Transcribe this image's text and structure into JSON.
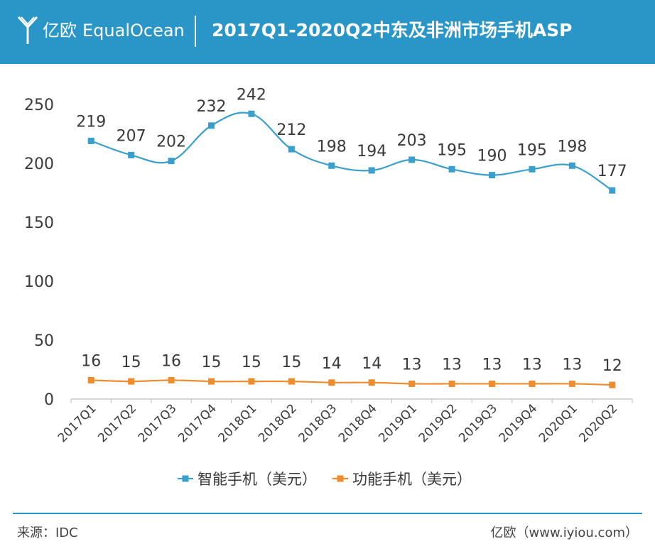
{
  "header": {
    "brand_cn": "亿欧",
    "brand_en": "EqualOcean",
    "title": "2017Q1-2020Q2中东及非洲市场手机ASP"
  },
  "colors": {
    "header_bg": "#2a96c8",
    "smartphone": "#3a9fcb",
    "featurephone": "#ee8c2e"
  },
  "chart_data": {
    "type": "line",
    "title": "2017Q1-2020Q2中东及非洲市场手机ASP",
    "categories": [
      "2017Q1",
      "2017Q2",
      "2017Q3",
      "2017Q4",
      "2018Q1",
      "2018Q2",
      "2018Q3",
      "2018Q4",
      "2019Q1",
      "2019Q2",
      "2019Q3",
      "2019Q4",
      "2020Q1",
      "2020Q2"
    ],
    "ylim": [
      0,
      250
    ],
    "yticks": [
      0,
      50,
      100,
      150,
      200,
      250
    ],
    "grid": false,
    "legend": "bottom",
    "series": [
      {
        "name": "智能手机（美元）",
        "values": [
          219,
          207,
          202,
          232,
          242,
          212,
          198,
          194,
          203,
          195,
          190,
          195,
          198,
          177
        ]
      },
      {
        "name": "功能手机（美元）",
        "values": [
          16,
          15,
          16,
          15,
          15,
          15,
          14,
          14,
          13,
          13,
          13,
          13,
          13,
          12
        ]
      }
    ]
  },
  "footer": {
    "source": "来源：IDC",
    "site": "亿欧（www.iyiou.com）"
  }
}
